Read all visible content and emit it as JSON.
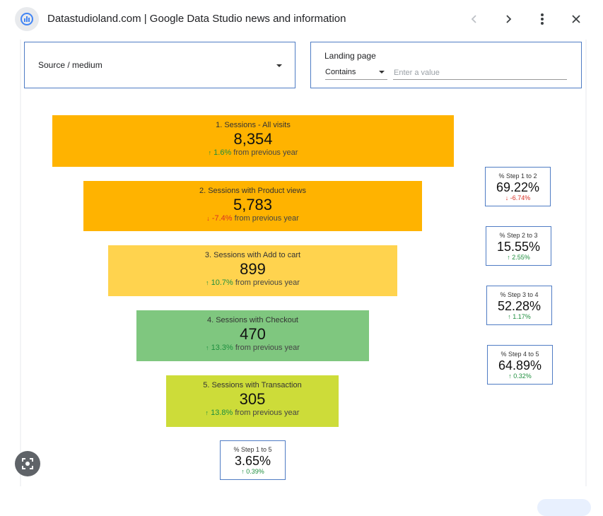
{
  "header": {
    "title": "Datastudioland.com | Google Data Studio news and information"
  },
  "filters": {
    "source_label": "Source / medium",
    "landing_label": "Landing page",
    "landing_operator": "Contains",
    "landing_placeholder": "Enter a value"
  },
  "funnel": [
    {
      "label": "1. Sessions - All visits",
      "value": "8,354",
      "change": "1.6%",
      "direction": "up",
      "suffix": "from previous year",
      "color": "#ffb300"
    },
    {
      "label": "2. Sessions with Product views",
      "value": "5,783",
      "change": "-7.4%",
      "direction": "down",
      "suffix": "from previous year",
      "color": "#ffb300"
    },
    {
      "label": "3. Sessions with Add to cart",
      "value": "899",
      "change": "10.7%",
      "direction": "up",
      "suffix": "from previous year",
      "color": "#ffd34e"
    },
    {
      "label": "4. Sessions with Checkout",
      "value": "470",
      "change": "13.3%",
      "direction": "up",
      "suffix": "from previous year",
      "color": "#7fc77f"
    },
    {
      "label": "5. Sessions with Transaction",
      "value": "305",
      "change": "13.8%",
      "direction": "up",
      "suffix": "from previous year",
      "color": "#cddc39"
    }
  ],
  "steps": [
    {
      "label": "% Step 1 to 2",
      "value": "69.22%",
      "change": "-6.74%",
      "direction": "down"
    },
    {
      "label": "% Step 2 to 3",
      "value": "15.55%",
      "change": "2.55%",
      "direction": "up"
    },
    {
      "label": "% Step 3 to 4",
      "value": "52.28%",
      "change": "1.17%",
      "direction": "up"
    },
    {
      "label": "% Step 4 to 5",
      "value": "64.89%",
      "change": "0.32%",
      "direction": "up"
    },
    {
      "label": "% Step 1 to 5",
      "value": "3.65%",
      "change": "0.39%",
      "direction": "up"
    }
  ],
  "icons": {
    "site": "data-studio-logo-icon",
    "prev": "chevron-left-icon",
    "next": "chevron-right-icon",
    "more": "more-vert-icon",
    "close": "close-icon",
    "lens": "google-lens-icon"
  }
}
